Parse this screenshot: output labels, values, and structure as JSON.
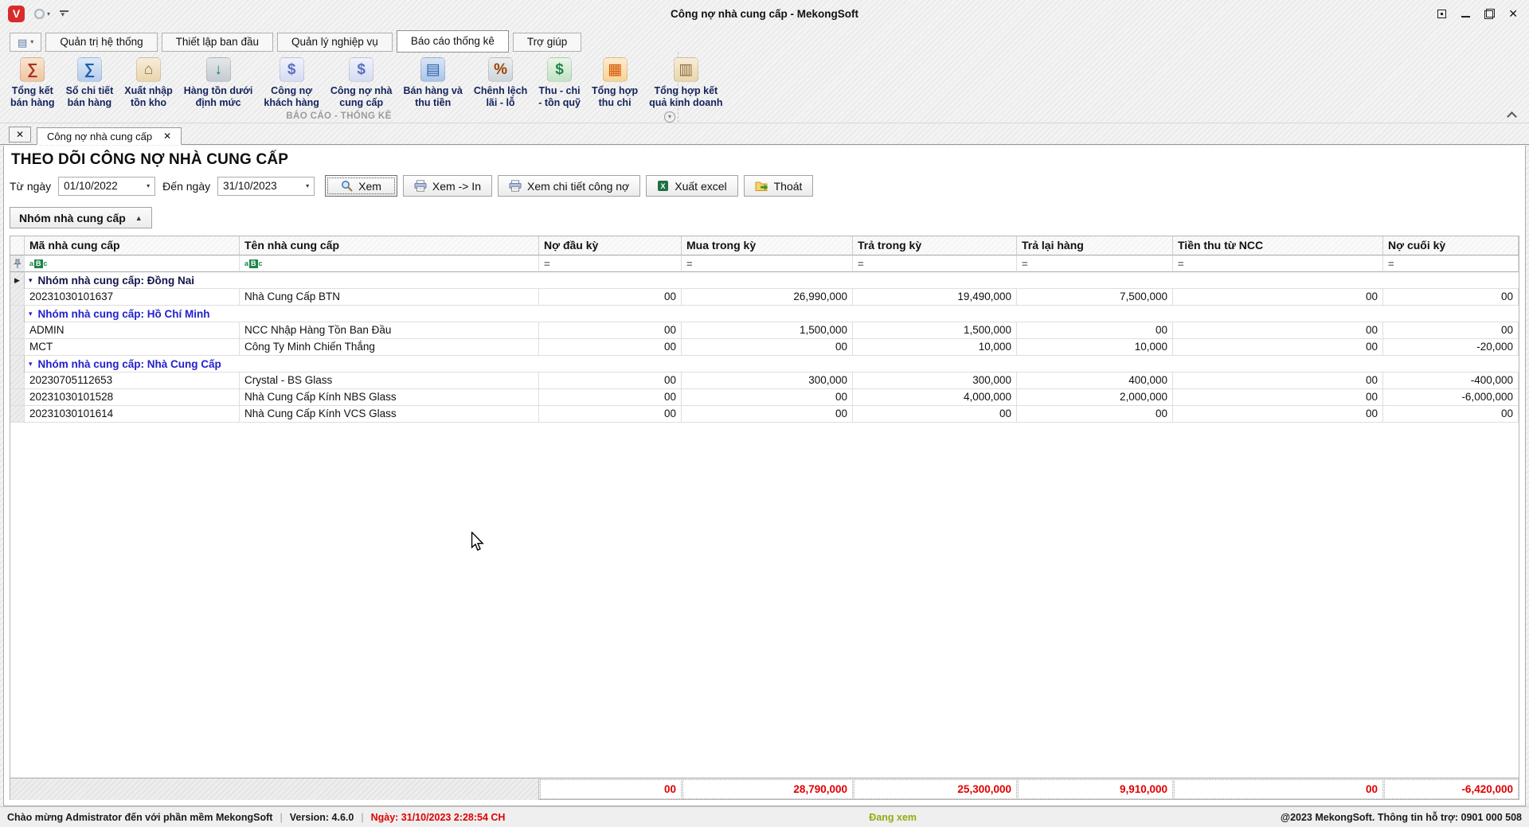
{
  "window": {
    "title": "Công nợ nhà cung cấp - MekongSoft",
    "logo_letter": "V"
  },
  "ribbon": {
    "tabs": [
      {
        "name": "quan-tri-he-thong",
        "label": "Quản trị hệ thống",
        "active": false
      },
      {
        "name": "thiet-lap-ban-dau",
        "label": "Thiết lập ban đầu",
        "active": false
      },
      {
        "name": "quan-ly-nghiep-vu",
        "label": "Quản lý nghiệp vụ",
        "active": false
      },
      {
        "name": "bao-cao-thong-ke",
        "label": "Báo cáo thống kê",
        "active": true
      },
      {
        "name": "tro-giup",
        "label": "Trợ giúp",
        "active": false
      }
    ],
    "tools": [
      {
        "name": "tong-ket-ban-hang",
        "lines": [
          "Tổng kết",
          "bán hàng"
        ],
        "icon": "sales-summary-icon"
      },
      {
        "name": "so-chi-tiet-ban-hang",
        "lines": [
          "Sổ chi tiết",
          "bán hàng"
        ],
        "icon": "sales-detail-book-icon"
      },
      {
        "name": "xuat-nhap-ton-kho",
        "lines": [
          "Xuất nhập",
          "tồn kho"
        ],
        "icon": "warehouse-icon"
      },
      {
        "name": "hang-ton-duoi-dinh-muc",
        "lines": [
          "Hàng tồn dưới",
          "định mức"
        ],
        "icon": "low-stock-database-icon"
      },
      {
        "name": "cong-no-khach-hang",
        "lines": [
          "Công nợ",
          "khách hàng"
        ],
        "icon": "customer-debt-tag-icon"
      },
      {
        "name": "cong-no-nha-cung-cap",
        "lines": [
          "Công nợ nhà",
          "cung cấp"
        ],
        "icon": "supplier-debt-tag-icon"
      },
      {
        "name": "ban-hang-va-thu-tien",
        "lines": [
          "Bán hàng và",
          "thu tiền"
        ],
        "icon": "sales-cash-icon"
      },
      {
        "name": "chenh-lech-lai-lo",
        "lines": [
          "Chênh lệch",
          "lãi - lỗ"
        ],
        "icon": "profit-loss-icon"
      },
      {
        "name": "thu-chi-ton-quy",
        "lines": [
          "Thu - chi",
          "- tồn quỹ"
        ],
        "icon": "cash-fund-icon"
      },
      {
        "name": "tong-hop-thu-chi",
        "lines": [
          "Tổng hợp",
          "thu chi"
        ],
        "icon": "income-expense-icon"
      },
      {
        "name": "tong-hop-ket-qua-kinh-doanh",
        "lines": [
          "Tổng hợp kết",
          "quả kinh doanh"
        ],
        "icon": "business-result-icon"
      }
    ],
    "group_label": "BÁO CÁO - THỐNG KÊ"
  },
  "doc_tabs": {
    "active_tab": {
      "label": "Công nợ nhà cung cấp"
    }
  },
  "report": {
    "title": "THEO DÕI CÔNG NỢ NHÀ CUNG CẤP",
    "from_label": "Từ ngày",
    "from_value": "01/10/2022",
    "to_label": "Đến ngày",
    "to_value": "31/10/2023",
    "buttons": [
      {
        "name": "xem",
        "label": "Xem",
        "icon": "magnifier-icon",
        "focused": true
      },
      {
        "name": "xem-in",
        "label": "Xem -> In",
        "icon": "printer-icon",
        "focused": false
      },
      {
        "name": "xem-chi-tiet-cong-no",
        "label": "Xem chi tiết công nợ",
        "icon": "printer-icon",
        "focused": false
      },
      {
        "name": "xuat-excel",
        "label": "Xuất excel",
        "icon": "excel-icon",
        "focused": false
      },
      {
        "name": "thoat",
        "label": "Thoát",
        "icon": "exit-icon",
        "focused": false
      }
    ],
    "group_by_chip": {
      "label": "Nhóm nhà cung cấp",
      "icon": "sort-asc-icon"
    }
  },
  "grid": {
    "filter_icons": {
      "abc": "aBc",
      "eq": "="
    },
    "columns": [
      {
        "key": "ma",
        "label": "Mã nhà cung cấp",
        "filter": "abc",
        "align": "left"
      },
      {
        "key": "ten",
        "label": "Tên nhà cung cấp",
        "filter": "abc",
        "align": "left"
      },
      {
        "key": "no_dau_ky",
        "label": "Nợ đầu kỳ",
        "filter": "eq",
        "align": "right"
      },
      {
        "key": "mua_trong_ky",
        "label": "Mua trong kỳ",
        "filter": "eq",
        "align": "right"
      },
      {
        "key": "tra_trong_ky",
        "label": "Trả trong kỳ",
        "filter": "eq",
        "align": "right"
      },
      {
        "key": "tra_lai_hang",
        "label": "Trả lại hàng",
        "filter": "eq",
        "align": "right"
      },
      {
        "key": "tien_thu_tu_ncc",
        "label": "Tiền thu từ NCC",
        "filter": "eq",
        "align": "right"
      },
      {
        "key": "no_cuoi_ky",
        "label": "Nợ cuối kỳ",
        "filter": "eq",
        "align": "right"
      }
    ],
    "rows": [
      {
        "type": "group",
        "label": "Nhóm nhà cung cấp: Đồng Nai",
        "variant": "dark",
        "current": true
      },
      {
        "type": "data",
        "ma": "20231030101637",
        "ten": "Nhà Cung Cấp BTN",
        "values": [
          "00",
          "26,990,000",
          "19,490,000",
          "7,500,000",
          "00",
          "00"
        ]
      },
      {
        "type": "group",
        "label": "Nhóm nhà cung cấp: Hồ Chí Minh",
        "variant": "blue",
        "current": false
      },
      {
        "type": "data",
        "ma": "ADMIN",
        "ten": "NCC Nhập Hàng Tồn Ban Đầu",
        "values": [
          "00",
          "1,500,000",
          "1,500,000",
          "00",
          "00",
          "00"
        ]
      },
      {
        "type": "data",
        "ma": "MCT",
        "ten": "Công Ty Minh Chiến Thắng",
        "values": [
          "00",
          "00",
          "10,000",
          "10,000",
          "00",
          "-20,000"
        ]
      },
      {
        "type": "group",
        "label": "Nhóm nhà cung cấp: Nhà Cung Cấp",
        "variant": "blue",
        "current": false
      },
      {
        "type": "data",
        "ma": "20230705112653",
        "ten": "Crystal - BS Glass",
        "values": [
          "00",
          "300,000",
          "300,000",
          "400,000",
          "00",
          "-400,000"
        ]
      },
      {
        "type": "data",
        "ma": "20231030101528",
        "ten": "Nhà Cung Cấp Kính NBS Glass",
        "values": [
          "00",
          "00",
          "4,000,000",
          "2,000,000",
          "00",
          "-6,000,000"
        ]
      },
      {
        "type": "data",
        "ma": "20231030101614",
        "ten": "Nhà Cung Cấp Kính VCS Glass",
        "values": [
          "00",
          "00",
          "00",
          "00",
          "00",
          "00"
        ]
      }
    ],
    "totals": [
      "00",
      "28,790,000",
      "25,300,000",
      "9,910,000",
      "00",
      "-6,420,000"
    ]
  },
  "statusbar": {
    "welcome": "Chào mừng Admistrator đến với phần mềm MekongSoft",
    "version": "Version: 4.6.0",
    "date": "Ngày: 31/10/2023 2:28:54 CH",
    "viewing": "Đang xem",
    "copyright": "@2023 MekongSoft. Thông tin hỗ trợ: 0901 000 508"
  }
}
